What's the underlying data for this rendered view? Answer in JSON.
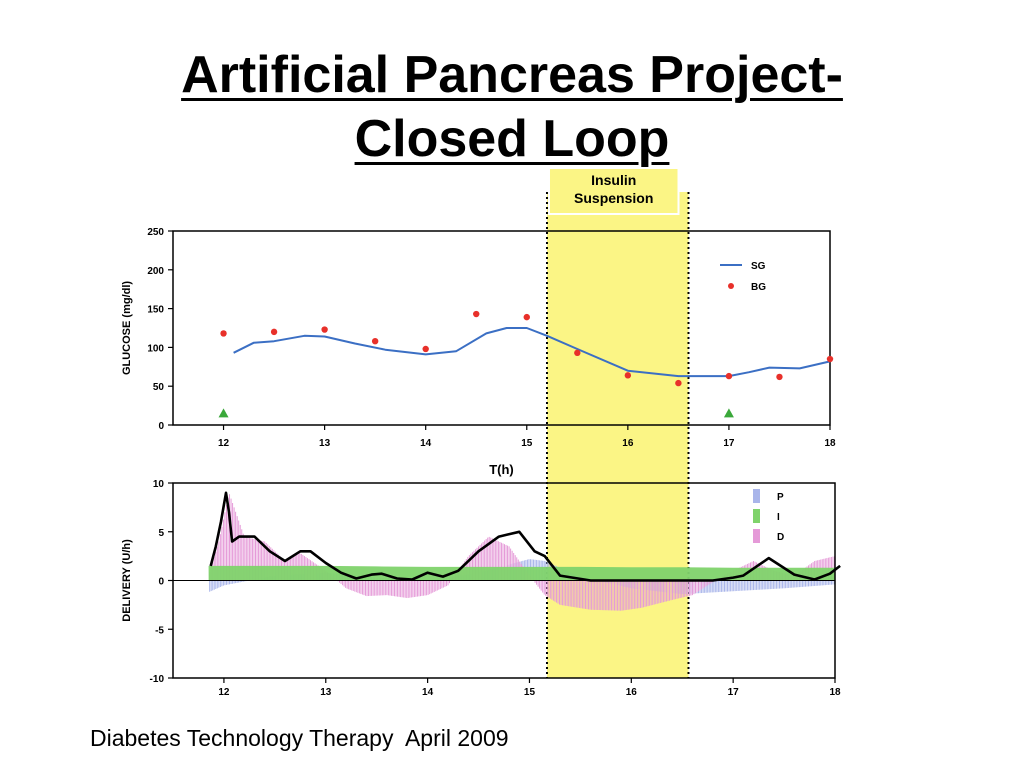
{
  "slide": {
    "title_line1": "Artificial Pancreas Project-",
    "title_line2": "Closed Loop",
    "caption": "Diabetes Technology Therapy  April 2009"
  },
  "colors": {
    "sg_line": "#3b6fc4",
    "bg_point": "#e8302a",
    "marker": "#3aa83a",
    "suspension_fill": "#fbf585",
    "p_component": "#a9b5ea",
    "i_component": "#7fd36b",
    "d_component": "#e59ad8",
    "total_delivery": "#000000"
  },
  "chart_data": [
    {
      "type": "line",
      "xlabel": "T(h)",
      "ylabel": "GLUCOSE (mg/dl)",
      "xlim": [
        11.5,
        18
      ],
      "ylim": [
        0,
        250
      ],
      "x_ticks": [
        12,
        13,
        14,
        15,
        16,
        17,
        18
      ],
      "y_ticks": [
        0,
        50,
        100,
        150,
        200,
        250
      ],
      "legend": {
        "position": "top-right",
        "entries": [
          "SG",
          "BG"
        ]
      },
      "annotation": {
        "text_line1": "Insulin",
        "text_line2": "Suspension",
        "x_start": 15.2,
        "x_end": 16.6
      },
      "series": [
        {
          "name": "SG",
          "style": "line",
          "x": [
            12.1,
            12.3,
            12.5,
            12.8,
            13.0,
            13.3,
            13.6,
            14.0,
            14.3,
            14.6,
            14.8,
            15.0,
            15.2,
            15.5,
            16.0,
            16.5,
            17.0,
            17.2,
            17.4,
            17.7,
            18.0
          ],
          "values": [
            93,
            106,
            108,
            115,
            114,
            105,
            97,
            91,
            95,
            118,
            125,
            125,
            115,
            98,
            70,
            63,
            63,
            68,
            74,
            73,
            82
          ]
        },
        {
          "name": "BG",
          "style": "scatter",
          "x": [
            12.0,
            12.5,
            13.0,
            13.5,
            14.0,
            14.5,
            15.0,
            15.5,
            16.0,
            16.5,
            17.0,
            17.5,
            18.0
          ],
          "values": [
            118,
            120,
            123,
            108,
            98,
            143,
            139,
            93,
            64,
            54,
            63,
            62,
            85
          ]
        },
        {
          "name": "",
          "style": "triangle-marker",
          "x": [
            12.0,
            17.0
          ],
          "values": [
            15,
            15
          ]
        }
      ]
    },
    {
      "type": "area",
      "ylabel": "DELIVERY (U/h)",
      "xlim": [
        11.5,
        18
      ],
      "ylim": [
        -10,
        10
      ],
      "x_ticks": [
        12,
        13,
        14,
        15,
        16,
        17,
        18
      ],
      "y_ticks": [
        -10,
        -5,
        0,
        5,
        10
      ],
      "legend": {
        "position": "top-right",
        "entries": [
          "P",
          "I",
          "D"
        ]
      },
      "series": [
        {
          "name": "P",
          "x": [
            11.85,
            12.0,
            12.5,
            13.0,
            13.5,
            14.0,
            14.5,
            15.0,
            15.15,
            15.5,
            16.0,
            16.5,
            17.0,
            17.5,
            18.0
          ],
          "values": [
            -1.2,
            -0.5,
            0.5,
            0.8,
            0.3,
            0,
            0.8,
            2.2,
            2.0,
            0.4,
            -0.8,
            -1.4,
            -1.1,
            -0.8,
            -0.4
          ]
        },
        {
          "name": "I",
          "x": [
            11.85,
            12.0,
            12.5,
            13.0,
            13.5,
            14.0,
            14.5,
            15.0,
            15.5,
            16.0,
            16.5,
            17.0,
            17.5,
            18.0
          ],
          "values": [
            1.5,
            1.5,
            1.5,
            1.5,
            1.45,
            1.4,
            1.4,
            1.4,
            1.4,
            1.35,
            1.35,
            1.3,
            1.3,
            1.3
          ]
        },
        {
          "name": "D",
          "x": [
            11.85,
            11.95,
            12.05,
            12.2,
            12.4,
            12.6,
            12.75,
            13.0,
            13.2,
            13.4,
            13.6,
            13.8,
            14.0,
            14.2,
            14.4,
            14.6,
            14.8,
            15.0,
            15.15,
            15.3,
            15.6,
            15.9,
            16.1,
            16.4,
            16.6,
            16.9,
            17.2,
            17.4,
            17.6,
            17.8,
            18.0
          ],
          "values": [
            0.5,
            4.0,
            9.0,
            4.5,
            4.0,
            2.0,
            2.8,
            1.0,
            -0.8,
            -1.6,
            -1.5,
            -1.8,
            -1.5,
            -0.5,
            2.5,
            4.5,
            3.5,
            0.5,
            -1.5,
            -2.5,
            -3.0,
            -3.1,
            -2.8,
            -2.0,
            -1.5,
            0.5,
            2.0,
            1.0,
            0.5,
            2.0,
            2.5
          ]
        },
        {
          "name": "",
          "style": "line",
          "x": [
            11.87,
            11.92,
            11.97,
            12.02,
            12.05,
            12.08,
            12.15,
            12.3,
            12.45,
            12.6,
            12.75,
            12.85,
            13.0,
            13.15,
            13.3,
            13.45,
            13.55,
            13.7,
            13.85,
            14.0,
            14.15,
            14.3,
            14.5,
            14.7,
            14.9,
            15.05,
            15.15,
            15.3,
            15.6,
            16.0,
            16.4,
            16.6,
            16.8,
            17.0,
            17.1,
            17.35,
            17.6,
            17.8,
            17.95,
            18.05
          ],
          "values": [
            1.5,
            3.5,
            6.0,
            9.0,
            7.0,
            4.0,
            4.5,
            4.5,
            3.0,
            2.0,
            3.0,
            3.0,
            1.8,
            0.8,
            0.2,
            0.6,
            0.7,
            0.2,
            0.1,
            0.8,
            0.4,
            1.0,
            3.0,
            4.5,
            5.0,
            3.0,
            2.5,
            0.5,
            0,
            0,
            0,
            0,
            0,
            0.3,
            0.5,
            2.3,
            0.6,
            0.1,
            0.7,
            1.5
          ]
        }
      ]
    }
  ]
}
